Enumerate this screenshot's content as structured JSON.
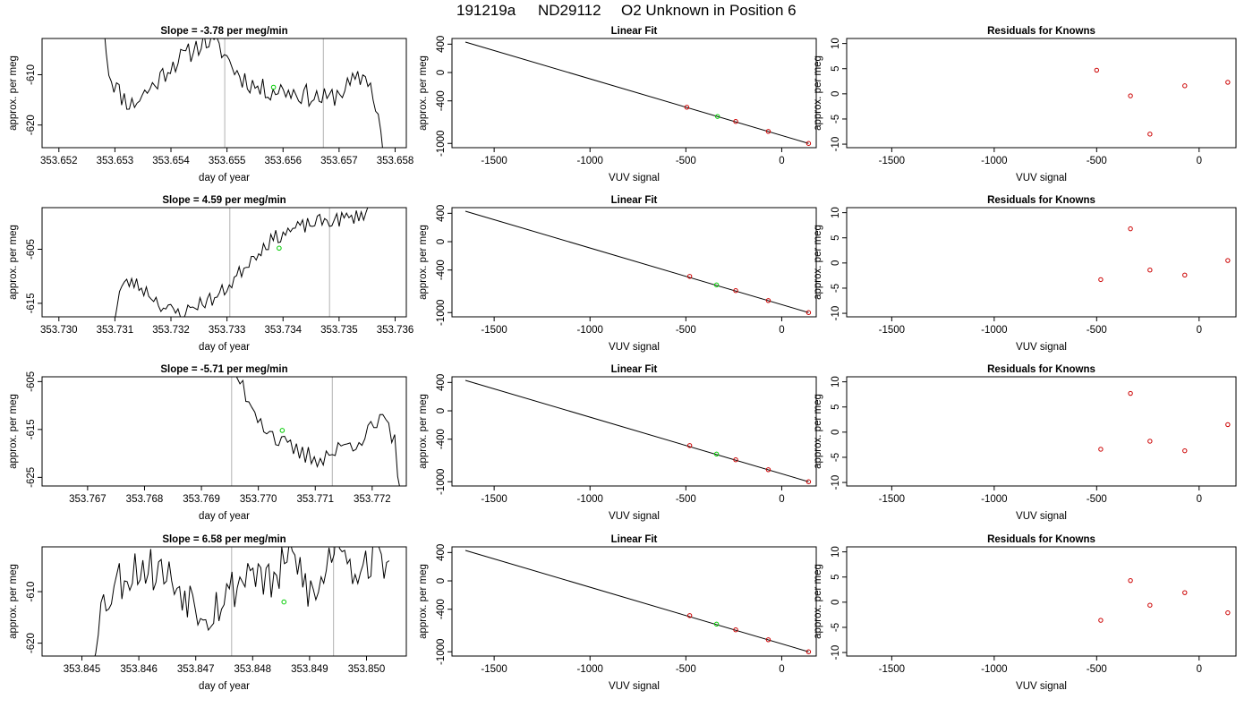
{
  "figure": {
    "title_run": "191219a",
    "title_tank": "ND29112",
    "title_desc": "O2 Unknown in Position  6"
  },
  "colors": {
    "line": "#000000",
    "vline": "#bebebe",
    "unknown": "#00cc00",
    "known": "#cc0000",
    "frame": "#000000"
  },
  "chart_data": [
    {
      "type": "line",
      "row": 0,
      "title": "Slope =  -3.78  per meg/min",
      "xlabel": "day of year",
      "ylabel": "approx. per meg",
      "xlim": [
        353.6517,
        353.6582
      ],
      "ylim": [
        -624.5,
        -602.8
      ],
      "xticks": [
        "353.652",
        "353.653",
        "353.654",
        "353.655",
        "353.656",
        "353.657",
        "353.658"
      ],
      "yticks": [
        "-610",
        "-620"
      ],
      "vlines": [
        353.65496,
        353.65672
      ],
      "unknown_point": [
        353.65583,
        -612.5
      ],
      "trace": {
        "x0": 353.6528,
        "x1": 353.65779,
        "n": 110,
        "knots": [
          [
            353.6528,
            -600
          ],
          [
            353.6529,
            -610
          ],
          [
            353.6531,
            -614
          ],
          [
            353.6533,
            -616
          ],
          [
            353.6535,
            -614
          ],
          [
            353.6537,
            -612
          ],
          [
            353.654,
            -608
          ],
          [
            353.6543,
            -606
          ],
          [
            353.6546,
            -603
          ],
          [
            353.6549,
            -605
          ],
          [
            353.6552,
            -610
          ],
          [
            353.6556,
            -613
          ],
          [
            353.656,
            -613
          ],
          [
            353.6564,
            -614
          ],
          [
            353.6568,
            -615
          ],
          [
            353.6572,
            -612
          ],
          [
            353.6575,
            -610
          ],
          [
            353.6577,
            -618
          ],
          [
            353.65779,
            -626
          ]
        ],
        "noise": 2.2,
        "seed": 11
      }
    },
    {
      "type": "line",
      "row": 1,
      "title": "Slope =  4.59  per meg/min",
      "xlabel": "day of year",
      "ylabel": "approx. per meg",
      "xlim": [
        353.7297,
        353.7362
      ],
      "ylim": [
        -617.5,
        -597.3
      ],
      "xticks": [
        "353.730",
        "353.731",
        "353.732",
        "353.733",
        "353.734",
        "353.735",
        "353.736"
      ],
      "yticks": [
        "-605",
        "-615"
      ],
      "vlines": [
        353.73305,
        353.73483
      ],
      "unknown_point": [
        353.73393,
        -604.8
      ],
      "trace": {
        "x0": 353.73095,
        "x1": 353.7357,
        "n": 110,
        "knots": [
          [
            353.73095,
            -620
          ],
          [
            353.7311,
            -612
          ],
          [
            353.7313,
            -611
          ],
          [
            353.7316,
            -613
          ],
          [
            353.7319,
            -616
          ],
          [
            353.7322,
            -617
          ],
          [
            353.7325,
            -615
          ],
          [
            353.7328,
            -614
          ],
          [
            353.7331,
            -611
          ],
          [
            353.7334,
            -607
          ],
          [
            353.7337,
            -604
          ],
          [
            353.734,
            -602
          ],
          [
            353.7343,
            -601
          ],
          [
            353.7346,
            -600
          ],
          [
            353.735,
            -599.5
          ],
          [
            353.7353,
            -599
          ],
          [
            353.7355,
            -598
          ],
          [
            353.7357,
            -594
          ]
        ],
        "noise": 1.4,
        "seed": 23
      }
    },
    {
      "type": "line",
      "row": 2,
      "title": "Slope =  -5.71  per meg/min",
      "xlabel": "day of year",
      "ylabel": "approx. per meg",
      "xlim": [
        353.7662,
        353.7726
      ],
      "ylim": [
        -626.8,
        -604.0
      ],
      "xticks": [
        "353.767",
        "353.768",
        "353.769",
        "353.770",
        "353.771",
        "353.772"
      ],
      "yticks": [
        "-605",
        "-615",
        "-625"
      ],
      "vlines": [
        353.76953,
        353.7713
      ],
      "unknown_point": [
        353.77042,
        -615.2
      ],
      "trace": {
        "x0": 353.7668,
        "x1": 353.7725,
        "n": 110,
        "knots": [
          [
            353.7668,
            -595
          ],
          [
            353.7674,
            -600
          ],
          [
            353.768,
            -602
          ],
          [
            353.7686,
            -601
          ],
          [
            353.7692,
            -600
          ],
          [
            353.7696,
            -603
          ],
          [
            353.7698,
            -608
          ],
          [
            353.7701,
            -614
          ],
          [
            353.7704,
            -618
          ],
          [
            353.7707,
            -620
          ],
          [
            353.771,
            -621
          ],
          [
            353.7713,
            -620
          ],
          [
            353.7716,
            -618
          ],
          [
            353.7719,
            -616
          ],
          [
            353.7722,
            -613
          ],
          [
            353.7724,
            -618
          ],
          [
            353.7725,
            -628
          ]
        ],
        "noise": 2.2,
        "seed": 37
      }
    },
    {
      "type": "line",
      "row": 3,
      "title": "Slope =  6.58  per meg/min",
      "xlabel": "day of year",
      "ylabel": "approx. per meg",
      "xlim": [
        353.8443,
        353.8507
      ],
      "ylim": [
        -622.5,
        -601.3
      ],
      "xticks": [
        "353.845",
        "353.846",
        "353.847",
        "353.848",
        "353.849",
        "353.850"
      ],
      "yticks": [
        "-610",
        "-620"
      ],
      "vlines": [
        353.84763,
        353.84942
      ],
      "unknown_point": [
        353.84855,
        -612.0
      ],
      "trace": {
        "x0": 353.84515,
        "x1": 353.8504,
        "n": 115,
        "knots": [
          [
            353.84515,
            -625
          ],
          [
            353.8453,
            -614
          ],
          [
            353.8456,
            -608
          ],
          [
            353.846,
            -605
          ],
          [
            353.8464,
            -606
          ],
          [
            353.8468,
            -610
          ],
          [
            353.8472,
            -614
          ],
          [
            353.8476,
            -610
          ],
          [
            353.848,
            -605
          ],
          [
            353.8483,
            -609
          ],
          [
            353.8487,
            -603
          ],
          [
            353.8491,
            -612
          ],
          [
            353.8495,
            -598
          ],
          [
            353.8498,
            -606
          ],
          [
            353.8501,
            -603
          ],
          [
            353.8504,
            -604
          ]
        ],
        "noise": 4.5,
        "seed": 53
      }
    },
    {
      "type": "scatter",
      "row": 0,
      "title": "Linear Fit",
      "xlabel": "VUV signal",
      "ylabel": "approx. per meg",
      "xlim": [
        -1720,
        180
      ],
      "ylim": [
        -1060,
        480
      ],
      "xticks": [
        -1500,
        -1000,
        -500,
        0
      ],
      "yticks": [
        400,
        0,
        -400,
        -1000
      ],
      "fit_line": [
        [
          -1650,
          430
        ],
        [
          140,
          -1000
        ]
      ],
      "knowns": [
        [
          -495,
          -490
        ],
        [
          -240,
          -690
        ],
        [
          -70,
          -830
        ],
        [
          140,
          -1000
        ]
      ],
      "unknown": [
        [
          -335,
          -620
        ]
      ]
    },
    {
      "type": "scatter",
      "row": 1,
      "title": "Linear Fit",
      "xlabel": "VUV signal",
      "ylabel": "approx. per meg",
      "xlim": [
        -1720,
        180
      ],
      "ylim": [
        -1060,
        480
      ],
      "xticks": [
        -1500,
        -1000,
        -500,
        0
      ],
      "yticks": [
        400,
        0,
        -400,
        -1000
      ],
      "fit_line": [
        [
          -1650,
          430
        ],
        [
          140,
          -1000
        ]
      ],
      "knowns": [
        [
          -480,
          -490
        ],
        [
          -240,
          -690
        ],
        [
          -70,
          -830
        ],
        [
          140,
          -1000
        ]
      ],
      "unknown": [
        [
          -340,
          -610
        ]
      ]
    },
    {
      "type": "scatter",
      "row": 2,
      "title": "Linear Fit",
      "xlabel": "VUV signal",
      "ylabel": "approx. per meg",
      "xlim": [
        -1720,
        180
      ],
      "ylim": [
        -1060,
        480
      ],
      "xticks": [
        -1500,
        -1000,
        -500,
        0
      ],
      "yticks": [
        400,
        0,
        -400,
        -1000
      ],
      "fit_line": [
        [
          -1650,
          430
        ],
        [
          140,
          -1000
        ]
      ],
      "knowns": [
        [
          -480,
          -490
        ],
        [
          -240,
          -690
        ],
        [
          -70,
          -830
        ],
        [
          140,
          -1000
        ]
      ],
      "unknown": [
        [
          -340,
          -610
        ]
      ]
    },
    {
      "type": "scatter",
      "row": 3,
      "title": "Linear Fit",
      "xlabel": "VUV signal",
      "ylabel": "approx. per meg",
      "xlim": [
        -1720,
        180
      ],
      "ylim": [
        -1060,
        480
      ],
      "xticks": [
        -1500,
        -1000,
        -500,
        0
      ],
      "yticks": [
        400,
        0,
        -400,
        -1000
      ],
      "fit_line": [
        [
          -1650,
          430
        ],
        [
          140,
          -1000
        ]
      ],
      "knowns": [
        [
          -480,
          -490
        ],
        [
          -240,
          -690
        ],
        [
          -70,
          -830
        ],
        [
          140,
          -1000
        ]
      ],
      "unknown": [
        [
          -340,
          -610
        ]
      ]
    },
    {
      "type": "scatter",
      "row": 0,
      "title": "Residuals for Knowns",
      "xlabel": "VUV signal",
      "ylabel": "approx. per meg",
      "xlim": [
        -1720,
        180
      ],
      "ylim": [
        -10.7,
        11.0
      ],
      "xticks": [
        -1500,
        -1000,
        -500,
        0
      ],
      "yticks": [
        10,
        5,
        0,
        -5,
        -10
      ],
      "residuals": [
        [
          -500,
          4.7
        ],
        [
          -335,
          -0.4
        ],
        [
          -240,
          -8.0
        ],
        [
          -70,
          1.6
        ],
        [
          140,
          2.3
        ]
      ]
    },
    {
      "type": "scatter",
      "row": 1,
      "title": "Residuals for Knowns",
      "xlabel": "VUV signal",
      "ylabel": "approx. per meg",
      "xlim": [
        -1720,
        180
      ],
      "ylim": [
        -10.7,
        11.0
      ],
      "xticks": [
        -1500,
        -1000,
        -500,
        0
      ],
      "yticks": [
        10,
        5,
        0,
        -5,
        -10
      ],
      "residuals": [
        [
          -480,
          -3.3
        ],
        [
          -335,
          6.8
        ],
        [
          -240,
          -1.4
        ],
        [
          -70,
          -2.4
        ],
        [
          140,
          0.5
        ]
      ]
    },
    {
      "type": "scatter",
      "row": 2,
      "title": "Residuals for Knowns",
      "xlabel": "VUV signal",
      "ylabel": "approx. per meg",
      "xlim": [
        -1720,
        180
      ],
      "ylim": [
        -10.7,
        11.0
      ],
      "xticks": [
        -1500,
        -1000,
        -500,
        0
      ],
      "yticks": [
        10,
        5,
        0,
        -5,
        -10
      ],
      "residuals": [
        [
          -480,
          -3.4
        ],
        [
          -335,
          7.7
        ],
        [
          -240,
          -1.8
        ],
        [
          -70,
          -3.7
        ],
        [
          140,
          1.5
        ]
      ]
    },
    {
      "type": "scatter",
      "row": 3,
      "title": "Residuals for Knowns",
      "xlabel": "VUV signal",
      "ylabel": "approx. per meg",
      "xlim": [
        -1720,
        180
      ],
      "ylim": [
        -10.7,
        11.0
      ],
      "xticks": [
        -1500,
        -1000,
        -500,
        0
      ],
      "yticks": [
        10,
        5,
        0,
        -5,
        -10
      ],
      "residuals": [
        [
          -480,
          -3.6
        ],
        [
          -335,
          4.3
        ],
        [
          -240,
          -0.6
        ],
        [
          -70,
          1.9
        ],
        [
          140,
          -2.1
        ]
      ]
    }
  ]
}
